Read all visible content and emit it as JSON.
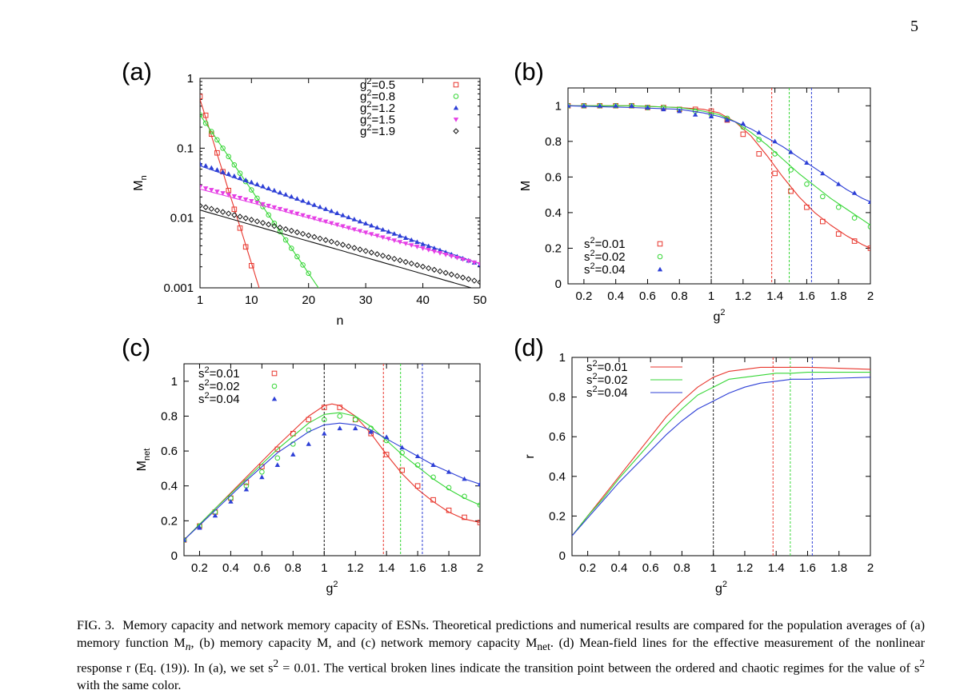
{
  "page_number": "5",
  "colors": {
    "red": "#e8362d",
    "green": "#36d636",
    "blue": "#2d3fd6",
    "magenta": "#e53fe5",
    "black": "#111111"
  },
  "chart_data": [
    {
      "id": "a",
      "type": "scatter",
      "panel_label": "(a)",
      "xlabel": "n",
      "ylabel": "M",
      "ylabel_sub": "n",
      "yscale": "log",
      "xlim": [
        1,
        50
      ],
      "ylim": [
        0.001,
        1
      ],
      "xticks": [
        1,
        10,
        20,
        30,
        40,
        50
      ],
      "xtick_labels": [
        "1",
        "10",
        "20",
        "30",
        "40",
        "50"
      ],
      "yticks": [
        0.001,
        0.01,
        0.1,
        1
      ],
      "ytick_labels": [
        "0.001",
        "0.01",
        "0.1",
        "1"
      ],
      "legend_position": "top-right",
      "series": [
        {
          "name": "g²=0.5",
          "label_pre": "g",
          "label_post": "=0.5",
          "color": "red",
          "marker": "square",
          "a0": 0.55,
          "decay": 0.62,
          "line_a0": 0.5,
          "line_decay": 0.6,
          "npoints": 10
        },
        {
          "name": "g²=0.8",
          "label_pre": "g",
          "label_post": "=0.8",
          "color": "green",
          "marker": "circle",
          "a0": 0.3,
          "decay": 0.275,
          "line_a0": 0.3,
          "line_decay": 0.275,
          "npoints": 20
        },
        {
          "name": "g²=1.2",
          "label_pre": "g",
          "label_post": "=1.2",
          "color": "blue",
          "marker": "triangle-up",
          "a0": 0.06,
          "decay": 0.068,
          "line_a0": 0.056,
          "line_decay": 0.066,
          "npoints": 50
        },
        {
          "name": "g²=1.5",
          "label_pre": "g",
          "label_post": "=1.5",
          "color": "magenta",
          "marker": "triangle-down",
          "a0": 0.028,
          "decay": 0.052,
          "line_a0": 0.026,
          "line_decay": 0.05,
          "npoints": 50
        },
        {
          "name": "g²=1.9",
          "label_pre": "g",
          "label_post": "=1.9",
          "color": "black",
          "marker": "diamond",
          "a0": 0.015,
          "decay": 0.0515,
          "line_a0": 0.013,
          "line_decay": 0.054,
          "npoints": 50
        }
      ]
    },
    {
      "id": "b",
      "type": "scatter",
      "panel_label": "(b)",
      "xlabel": "g",
      "xlabel_sup": "2",
      "ylabel": "M",
      "xlim": [
        0.1,
        2
      ],
      "ylim": [
        0,
        1.1
      ],
      "xticks": [
        0.2,
        0.4,
        0.6,
        0.8,
        1,
        1.2,
        1.4,
        1.6,
        1.8,
        2
      ],
      "xtick_labels": [
        "0.2",
        "0.4",
        "0.6",
        "0.8",
        "1",
        "1.2",
        "1.4",
        "1.6",
        "1.8",
        "2"
      ],
      "yticks": [
        0,
        0.2,
        0.4,
        0.6,
        0.8,
        1
      ],
      "ytick_labels": [
        "0",
        "0.2",
        "0.4",
        "0.6",
        "0.8",
        "1"
      ],
      "legend_position": "bottom-left",
      "vlines": [
        {
          "x": 1,
          "color": "black"
        },
        {
          "x": 1.38,
          "color": "red"
        },
        {
          "x": 1.49,
          "color": "green"
        },
        {
          "x": 1.63,
          "color": "blue"
        }
      ],
      "series": [
        {
          "name": "s²=0.01",
          "label_pre": "s",
          "label_post": "=0.01",
          "color": "red",
          "marker": "square",
          "x": [
            0.1,
            0.2,
            0.3,
            0.4,
            0.5,
            0.6,
            0.7,
            0.8,
            0.9,
            1.0,
            1.1,
            1.2,
            1.3,
            1.4,
            1.5,
            1.6,
            1.7,
            1.8,
            1.9,
            2.0
          ],
          "y": [
            1,
            1,
            1,
            1,
            1,
            0.99,
            0.99,
            0.98,
            0.98,
            0.97,
            0.92,
            0.84,
            0.73,
            0.62,
            0.52,
            0.43,
            0.35,
            0.28,
            0.24,
            0.2
          ],
          "line_x": [
            0.1,
            0.5,
            0.8,
            0.95,
            1.05,
            1.15,
            1.25,
            1.35,
            1.45,
            1.55,
            1.65,
            1.75,
            1.85,
            1.95,
            2.0
          ],
          "line_y": [
            1,
            1,
            0.99,
            0.98,
            0.96,
            0.91,
            0.83,
            0.72,
            0.6,
            0.49,
            0.4,
            0.33,
            0.27,
            0.22,
            0.2
          ]
        },
        {
          "name": "s²=0.02",
          "label_pre": "s",
          "label_post": "=0.02",
          "color": "green",
          "marker": "circle",
          "x": [
            0.1,
            0.2,
            0.3,
            0.4,
            0.5,
            0.6,
            0.7,
            0.8,
            0.9,
            1.0,
            1.1,
            1.2,
            1.3,
            1.4,
            1.5,
            1.6,
            1.7,
            1.8,
            1.9,
            2.0
          ],
          "y": [
            1,
            1,
            1,
            1,
            1,
            0.99,
            0.99,
            0.98,
            0.97,
            0.95,
            0.93,
            0.88,
            0.81,
            0.73,
            0.64,
            0.56,
            0.49,
            0.43,
            0.37,
            0.32
          ],
          "line_x": [
            0.1,
            0.5,
            0.8,
            0.95,
            1.05,
            1.15,
            1.25,
            1.35,
            1.45,
            1.55,
            1.65,
            1.75,
            1.85,
            1.95,
            2.0
          ],
          "line_y": [
            1,
            1,
            0.99,
            0.97,
            0.95,
            0.91,
            0.85,
            0.78,
            0.7,
            0.62,
            0.55,
            0.48,
            0.42,
            0.36,
            0.33
          ]
        },
        {
          "name": "s²=0.04",
          "label_pre": "s",
          "label_post": "=0.04",
          "color": "blue",
          "marker": "triangle-up",
          "x": [
            0.1,
            0.2,
            0.3,
            0.4,
            0.5,
            0.6,
            0.7,
            0.8,
            0.9,
            1.0,
            1.1,
            1.2,
            1.3,
            1.4,
            1.5,
            1.6,
            1.7,
            1.8,
            1.9,
            2.0
          ],
          "y": [
            1,
            1,
            1,
            1,
            1,
            0.99,
            0.98,
            0.97,
            0.95,
            0.94,
            0.92,
            0.9,
            0.85,
            0.8,
            0.74,
            0.68,
            0.62,
            0.56,
            0.51,
            0.46
          ],
          "line_x": [
            0.1,
            0.5,
            0.8,
            0.95,
            1.05,
            1.15,
            1.25,
            1.35,
            1.45,
            1.55,
            1.65,
            1.75,
            1.85,
            1.95,
            2.0
          ],
          "line_y": [
            1,
            0.99,
            0.98,
            0.96,
            0.94,
            0.91,
            0.87,
            0.82,
            0.77,
            0.71,
            0.65,
            0.59,
            0.53,
            0.48,
            0.46
          ]
        }
      ]
    },
    {
      "id": "c",
      "type": "scatter",
      "panel_label": "(c)",
      "xlabel": "g",
      "xlabel_sup": "2",
      "ylabel": "M",
      "ylabel_sub": "net",
      "xlim": [
        0.1,
        2
      ],
      "ylim": [
        0,
        1.1
      ],
      "xticks": [
        0.2,
        0.4,
        0.6,
        0.8,
        1,
        1.2,
        1.4,
        1.6,
        1.8,
        2
      ],
      "xtick_labels": [
        "0.2",
        "0.4",
        "0.6",
        "0.8",
        "1",
        "1.2",
        "1.4",
        "1.6",
        "1.8",
        "2"
      ],
      "yticks": [
        0,
        0.2,
        0.4,
        0.6,
        0.8,
        1
      ],
      "ytick_labels": [
        "0",
        "0.2",
        "0.4",
        "0.6",
        "0.8",
        "1"
      ],
      "legend_position": "top-left",
      "vlines": [
        {
          "x": 1,
          "color": "black"
        },
        {
          "x": 1.38,
          "color": "red"
        },
        {
          "x": 1.49,
          "color": "green"
        },
        {
          "x": 1.63,
          "color": "blue"
        }
      ],
      "series": [
        {
          "name": "s²=0.01",
          "label_pre": "s",
          "label_post": "=0.01",
          "color": "red",
          "marker": "square",
          "x": [
            0.1,
            0.2,
            0.3,
            0.4,
            0.5,
            0.6,
            0.7,
            0.8,
            0.9,
            1.0,
            1.1,
            1.2,
            1.3,
            1.4,
            1.5,
            1.6,
            1.7,
            1.8,
            1.9,
            2.0
          ],
          "y": [
            0.09,
            0.17,
            0.25,
            0.33,
            0.42,
            0.51,
            0.61,
            0.7,
            0.78,
            0.85,
            0.85,
            0.78,
            0.7,
            0.58,
            0.49,
            0.4,
            0.32,
            0.26,
            0.22,
            0.19
          ],
          "line_x": [
            0.1,
            0.3,
            0.5,
            0.7,
            0.9,
            1.0,
            1.05,
            1.1,
            1.2,
            1.3,
            1.4,
            1.5,
            1.6,
            1.7,
            1.8,
            1.9,
            2.0
          ],
          "line_y": [
            0.09,
            0.27,
            0.45,
            0.63,
            0.8,
            0.86,
            0.87,
            0.86,
            0.8,
            0.7,
            0.58,
            0.47,
            0.38,
            0.31,
            0.25,
            0.21,
            0.19
          ]
        },
        {
          "name": "s²=0.02",
          "label_pre": "s",
          "label_post": "=0.02",
          "color": "green",
          "marker": "circle",
          "x": [
            0.1,
            0.2,
            0.3,
            0.4,
            0.5,
            0.6,
            0.7,
            0.8,
            0.9,
            1.0,
            1.1,
            1.2,
            1.3,
            1.4,
            1.5,
            1.6,
            1.7,
            1.8,
            1.9,
            2.0
          ],
          "y": [
            0.09,
            0.17,
            0.25,
            0.33,
            0.4,
            0.48,
            0.56,
            0.64,
            0.72,
            0.78,
            0.8,
            0.78,
            0.73,
            0.66,
            0.59,
            0.52,
            0.45,
            0.39,
            0.34,
            0.29
          ],
          "line_x": [
            0.1,
            0.3,
            0.5,
            0.7,
            0.9,
            1.0,
            1.1,
            1.2,
            1.3,
            1.4,
            1.5,
            1.6,
            1.7,
            1.8,
            1.9,
            2.0
          ],
          "line_y": [
            0.09,
            0.27,
            0.44,
            0.61,
            0.76,
            0.81,
            0.82,
            0.8,
            0.74,
            0.66,
            0.58,
            0.51,
            0.44,
            0.38,
            0.33,
            0.29
          ]
        },
        {
          "name": "s²=0.04",
          "label_pre": "s",
          "label_post": "=0.04",
          "color": "blue",
          "marker": "triangle-up",
          "x": [
            0.1,
            0.2,
            0.3,
            0.4,
            0.5,
            0.6,
            0.7,
            0.8,
            0.9,
            1.0,
            1.1,
            1.2,
            1.3,
            1.4,
            1.5,
            1.6,
            1.7,
            1.8,
            1.9,
            2.0
          ],
          "y": [
            0.09,
            0.16,
            0.23,
            0.31,
            0.38,
            0.45,
            0.52,
            0.58,
            0.64,
            0.7,
            0.73,
            0.73,
            0.71,
            0.68,
            0.62,
            0.57,
            0.52,
            0.48,
            0.44,
            0.41
          ],
          "line_x": [
            0.1,
            0.3,
            0.5,
            0.7,
            0.9,
            1.0,
            1.1,
            1.2,
            1.3,
            1.4,
            1.5,
            1.6,
            1.7,
            1.8,
            1.9,
            2.0
          ],
          "line_y": [
            0.09,
            0.26,
            0.43,
            0.59,
            0.71,
            0.75,
            0.76,
            0.75,
            0.72,
            0.67,
            0.62,
            0.57,
            0.52,
            0.48,
            0.44,
            0.41
          ]
        }
      ]
    },
    {
      "id": "d",
      "type": "line",
      "panel_label": "(d)",
      "xlabel": "g",
      "xlabel_sup": "2",
      "ylabel": "r",
      "xlim": [
        0.1,
        2
      ],
      "ylim": [
        0,
        1
      ],
      "xticks": [
        0.2,
        0.4,
        0.6,
        0.8,
        1,
        1.2,
        1.4,
        1.6,
        1.8,
        2
      ],
      "xtick_labels": [
        "0.2",
        "0.4",
        "0.6",
        "0.8",
        "1",
        "1.2",
        "1.4",
        "1.6",
        "1.8",
        "2"
      ],
      "yticks": [
        0,
        0.2,
        0.4,
        0.6,
        0.8,
        1
      ],
      "ytick_labels": [
        "0",
        "0.2",
        "0.4",
        "0.6",
        "0.8",
        "1"
      ],
      "legend_position": "top-left",
      "vlines": [
        {
          "x": 1,
          "color": "black"
        },
        {
          "x": 1.38,
          "color": "red"
        },
        {
          "x": 1.49,
          "color": "green"
        },
        {
          "x": 1.63,
          "color": "blue"
        }
      ],
      "series": [
        {
          "name": "s²=0.01",
          "label_pre": "s",
          "label_post": "=0.01",
          "color": "red",
          "line_x": [
            0.1,
            0.2,
            0.3,
            0.4,
            0.5,
            0.6,
            0.7,
            0.8,
            0.9,
            1.0,
            1.1,
            1.2,
            1.3,
            1.4,
            1.5,
            1.6,
            1.8,
            2.0
          ],
          "line_y": [
            0.1,
            0.2,
            0.3,
            0.4,
            0.5,
            0.6,
            0.7,
            0.78,
            0.85,
            0.9,
            0.93,
            0.94,
            0.95,
            0.95,
            0.95,
            0.95,
            0.945,
            0.94
          ]
        },
        {
          "name": "s²=0.02",
          "label_pre": "s",
          "label_post": "=0.02",
          "color": "green",
          "line_x": [
            0.1,
            0.2,
            0.3,
            0.4,
            0.5,
            0.6,
            0.7,
            0.8,
            0.9,
            1.0,
            1.1,
            1.2,
            1.3,
            1.4,
            1.5,
            1.6,
            1.8,
            2.0
          ],
          "line_y": [
            0.1,
            0.2,
            0.29,
            0.39,
            0.48,
            0.57,
            0.66,
            0.74,
            0.81,
            0.85,
            0.89,
            0.9,
            0.91,
            0.92,
            0.92,
            0.925,
            0.925,
            0.925
          ]
        },
        {
          "name": "s²=0.04",
          "label_pre": "s",
          "label_post": "=0.04",
          "color": "blue",
          "line_x": [
            0.1,
            0.2,
            0.3,
            0.4,
            0.5,
            0.6,
            0.7,
            0.8,
            0.9,
            1.0,
            1.1,
            1.2,
            1.3,
            1.4,
            1.5,
            1.6,
            1.8,
            2.0
          ],
          "line_y": [
            0.1,
            0.19,
            0.28,
            0.37,
            0.45,
            0.53,
            0.61,
            0.68,
            0.74,
            0.78,
            0.82,
            0.85,
            0.87,
            0.88,
            0.89,
            0.89,
            0.895,
            0.9
          ]
        }
      ]
    }
  ],
  "caption": {
    "label": "FIG. 3.",
    "text": "Memory capacity and network memory capacity of ESNs. Theoretical predictions and numerical results are compared for the population averages of (a) memory function M",
    "sub_n": "n",
    "text2": ", (b) memory capacity M, and (c) network memory capacity M",
    "sub_net": "net",
    "text3": ". (d) Mean-field lines for the effective measurement of the nonlinear response r (Eq. (19)). In (a), we set s",
    "sup2": "2",
    "text4": " = 0.01. The vertical broken lines indicate the transition point between the ordered and chaotic regimes for the value of s",
    "sup3": "2",
    "text5": " with the same color."
  }
}
